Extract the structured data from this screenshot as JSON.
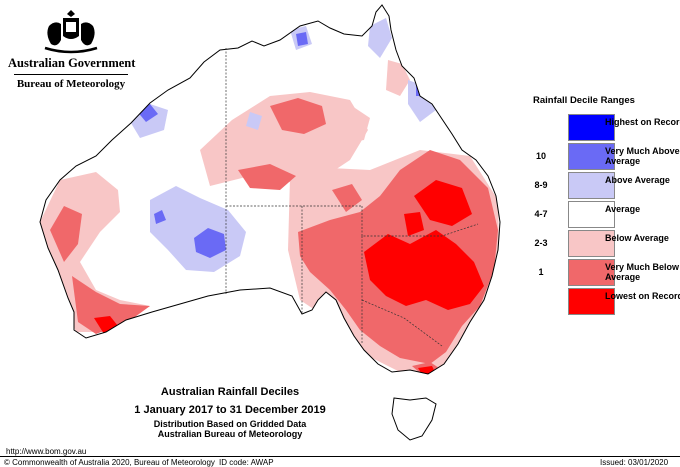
{
  "header": {
    "government": "Australian Government",
    "bureau": "Bureau of Meteorology"
  },
  "legend": {
    "title": "Rainfall Decile Ranges",
    "items": [
      {
        "range": "",
        "label": "Highest on Record",
        "color": "#0000ff"
      },
      {
        "range": "10",
        "label": "Very Much Above Average",
        "color": "#6a6af5"
      },
      {
        "range": "8-9",
        "label": "Above Average",
        "color": "#c9c9f6"
      },
      {
        "range": "4-7",
        "label": "Average",
        "color": "#ffffff"
      },
      {
        "range": "2-3",
        "label": "Below Average",
        "color": "#f8c6c6"
      },
      {
        "range": "1",
        "label": "Very Much Below Average",
        "color": "#f0686a"
      },
      {
        "range": "",
        "label": "Lowest on Record",
        "color": "#ff0000"
      }
    ]
  },
  "title": {
    "main": "Australian Rainfall Deciles",
    "period": "1 January 2017 to 31 December 2019",
    "note1": "Distribution Based on Gridded Data",
    "note2": "Australian Bureau of Meteorology"
  },
  "footer": {
    "url": "http://www.bom.gov.au",
    "copyright": "© Commonwealth of Australia 2020, Bureau of Meteorology",
    "id_code": "ID code: AWAP",
    "issued": "Issued: 03/01/2020"
  }
}
